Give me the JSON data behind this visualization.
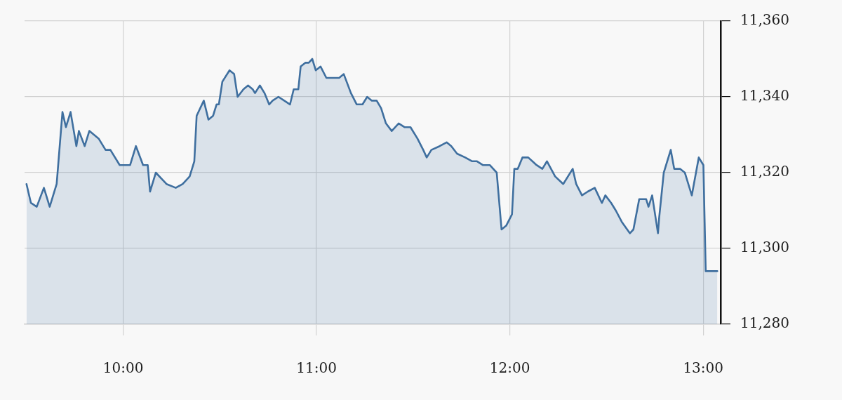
{
  "chart_data": {
    "type": "area",
    "color": "#3f6f9f",
    "marker": "none",
    "line_style": "solid",
    "grid": true,
    "xlim": [
      9.49,
      13.09
    ],
    "xticks": [
      {
        "value": 10,
        "label": "10:00"
      },
      {
        "value": 11,
        "label": "11:00"
      },
      {
        "value": 12,
        "label": "12:00"
      },
      {
        "value": 13,
        "label": "13:00"
      }
    ],
    "ylim": [
      11280,
      11360
    ],
    "yticks": [
      {
        "value": 11280,
        "label": "11,280"
      },
      {
        "value": 11300,
        "label": "11,300"
      },
      {
        "value": 11320,
        "label": "11,320"
      },
      {
        "value": 11340,
        "label": "11,340"
      },
      {
        "value": 11360,
        "label": "11,360"
      }
    ],
    "x": [
      9.5,
      9.523,
      9.553,
      9.59,
      9.62,
      9.656,
      9.686,
      9.704,
      9.728,
      9.758,
      9.771,
      9.801,
      9.825,
      9.873,
      9.909,
      9.934,
      9.982,
      10.036,
      10.066,
      10.103,
      10.127,
      10.139,
      10.169,
      10.224,
      10.272,
      10.308,
      10.344,
      10.368,
      10.38,
      10.417,
      10.441,
      10.465,
      10.483,
      10.495,
      10.513,
      10.55,
      10.574,
      10.592,
      10.622,
      10.646,
      10.67,
      10.682,
      10.707,
      10.731,
      10.755,
      10.773,
      10.803,
      10.833,
      10.863,
      10.882,
      10.906,
      10.918,
      10.942,
      10.96,
      10.978,
      10.996,
      11.021,
      11.051,
      11.069,
      11.099,
      11.117,
      11.141,
      11.178,
      11.208,
      11.238,
      11.262,
      11.286,
      11.311,
      11.334,
      11.359,
      11.389,
      11.425,
      11.455,
      11.486,
      11.522,
      11.552,
      11.57,
      11.594,
      11.637,
      11.673,
      11.697,
      11.727,
      11.769,
      11.805,
      11.83,
      11.86,
      11.896,
      11.932,
      11.957,
      11.981,
      12.011,
      12.023,
      12.041,
      12.065,
      12.095,
      12.138,
      12.168,
      12.192,
      12.234,
      12.276,
      12.325,
      12.343,
      12.373,
      12.403,
      12.439,
      12.476,
      12.494,
      12.524,
      12.548,
      12.579,
      12.621,
      12.639,
      12.669,
      12.705,
      12.717,
      12.736,
      12.766,
      12.772,
      12.796,
      12.832,
      12.85,
      12.88,
      12.905,
      12.941,
      12.977,
      13.001,
      13.013,
      13.073
    ],
    "values": [
      11317,
      11312,
      11311,
      11316,
      11311,
      11317,
      11336,
      11332,
      11336,
      11327,
      11331,
      11327,
      11331,
      11329,
      11326,
      11326,
      11322,
      11322,
      11327,
      11322,
      11322,
      11315,
      11320,
      11317,
      11316,
      11317,
      11319,
      11323,
      11335,
      11339,
      11334,
      11335,
      11338,
      11338,
      11344,
      11347,
      11346,
      11340,
      11342,
      11343,
      11342,
      11341,
      11343,
      11341,
      11338,
      11339,
      11340,
      11339,
      11338,
      11342,
      11342,
      11348,
      11349,
      11349,
      11350,
      11347,
      11348,
      11345,
      11345,
      11345,
      11345,
      11346,
      11341,
      11338,
      11338,
      11340,
      11339,
      11339,
      11337,
      11333,
      11331,
      11333,
      11332,
      11332,
      11329,
      11326,
      11324,
      11326,
      11327,
      11328,
      11327,
      11325,
      11324,
      11323,
      11323,
      11322,
      11322,
      11320,
      11305,
      11306,
      11309,
      11321,
      11321,
      11324,
      11324,
      11322,
      11321,
      11323,
      11319,
      11317,
      11321,
      11317,
      11314,
      11315,
      11316,
      11312,
      11314,
      11312,
      11310,
      11307,
      11304,
      11305,
      11313,
      11313,
      11311,
      11314,
      11304,
      11308,
      11320,
      11326,
      11321,
      11321,
      11320,
      11314,
      11324,
      11322,
      11294,
      11294
    ]
  }
}
